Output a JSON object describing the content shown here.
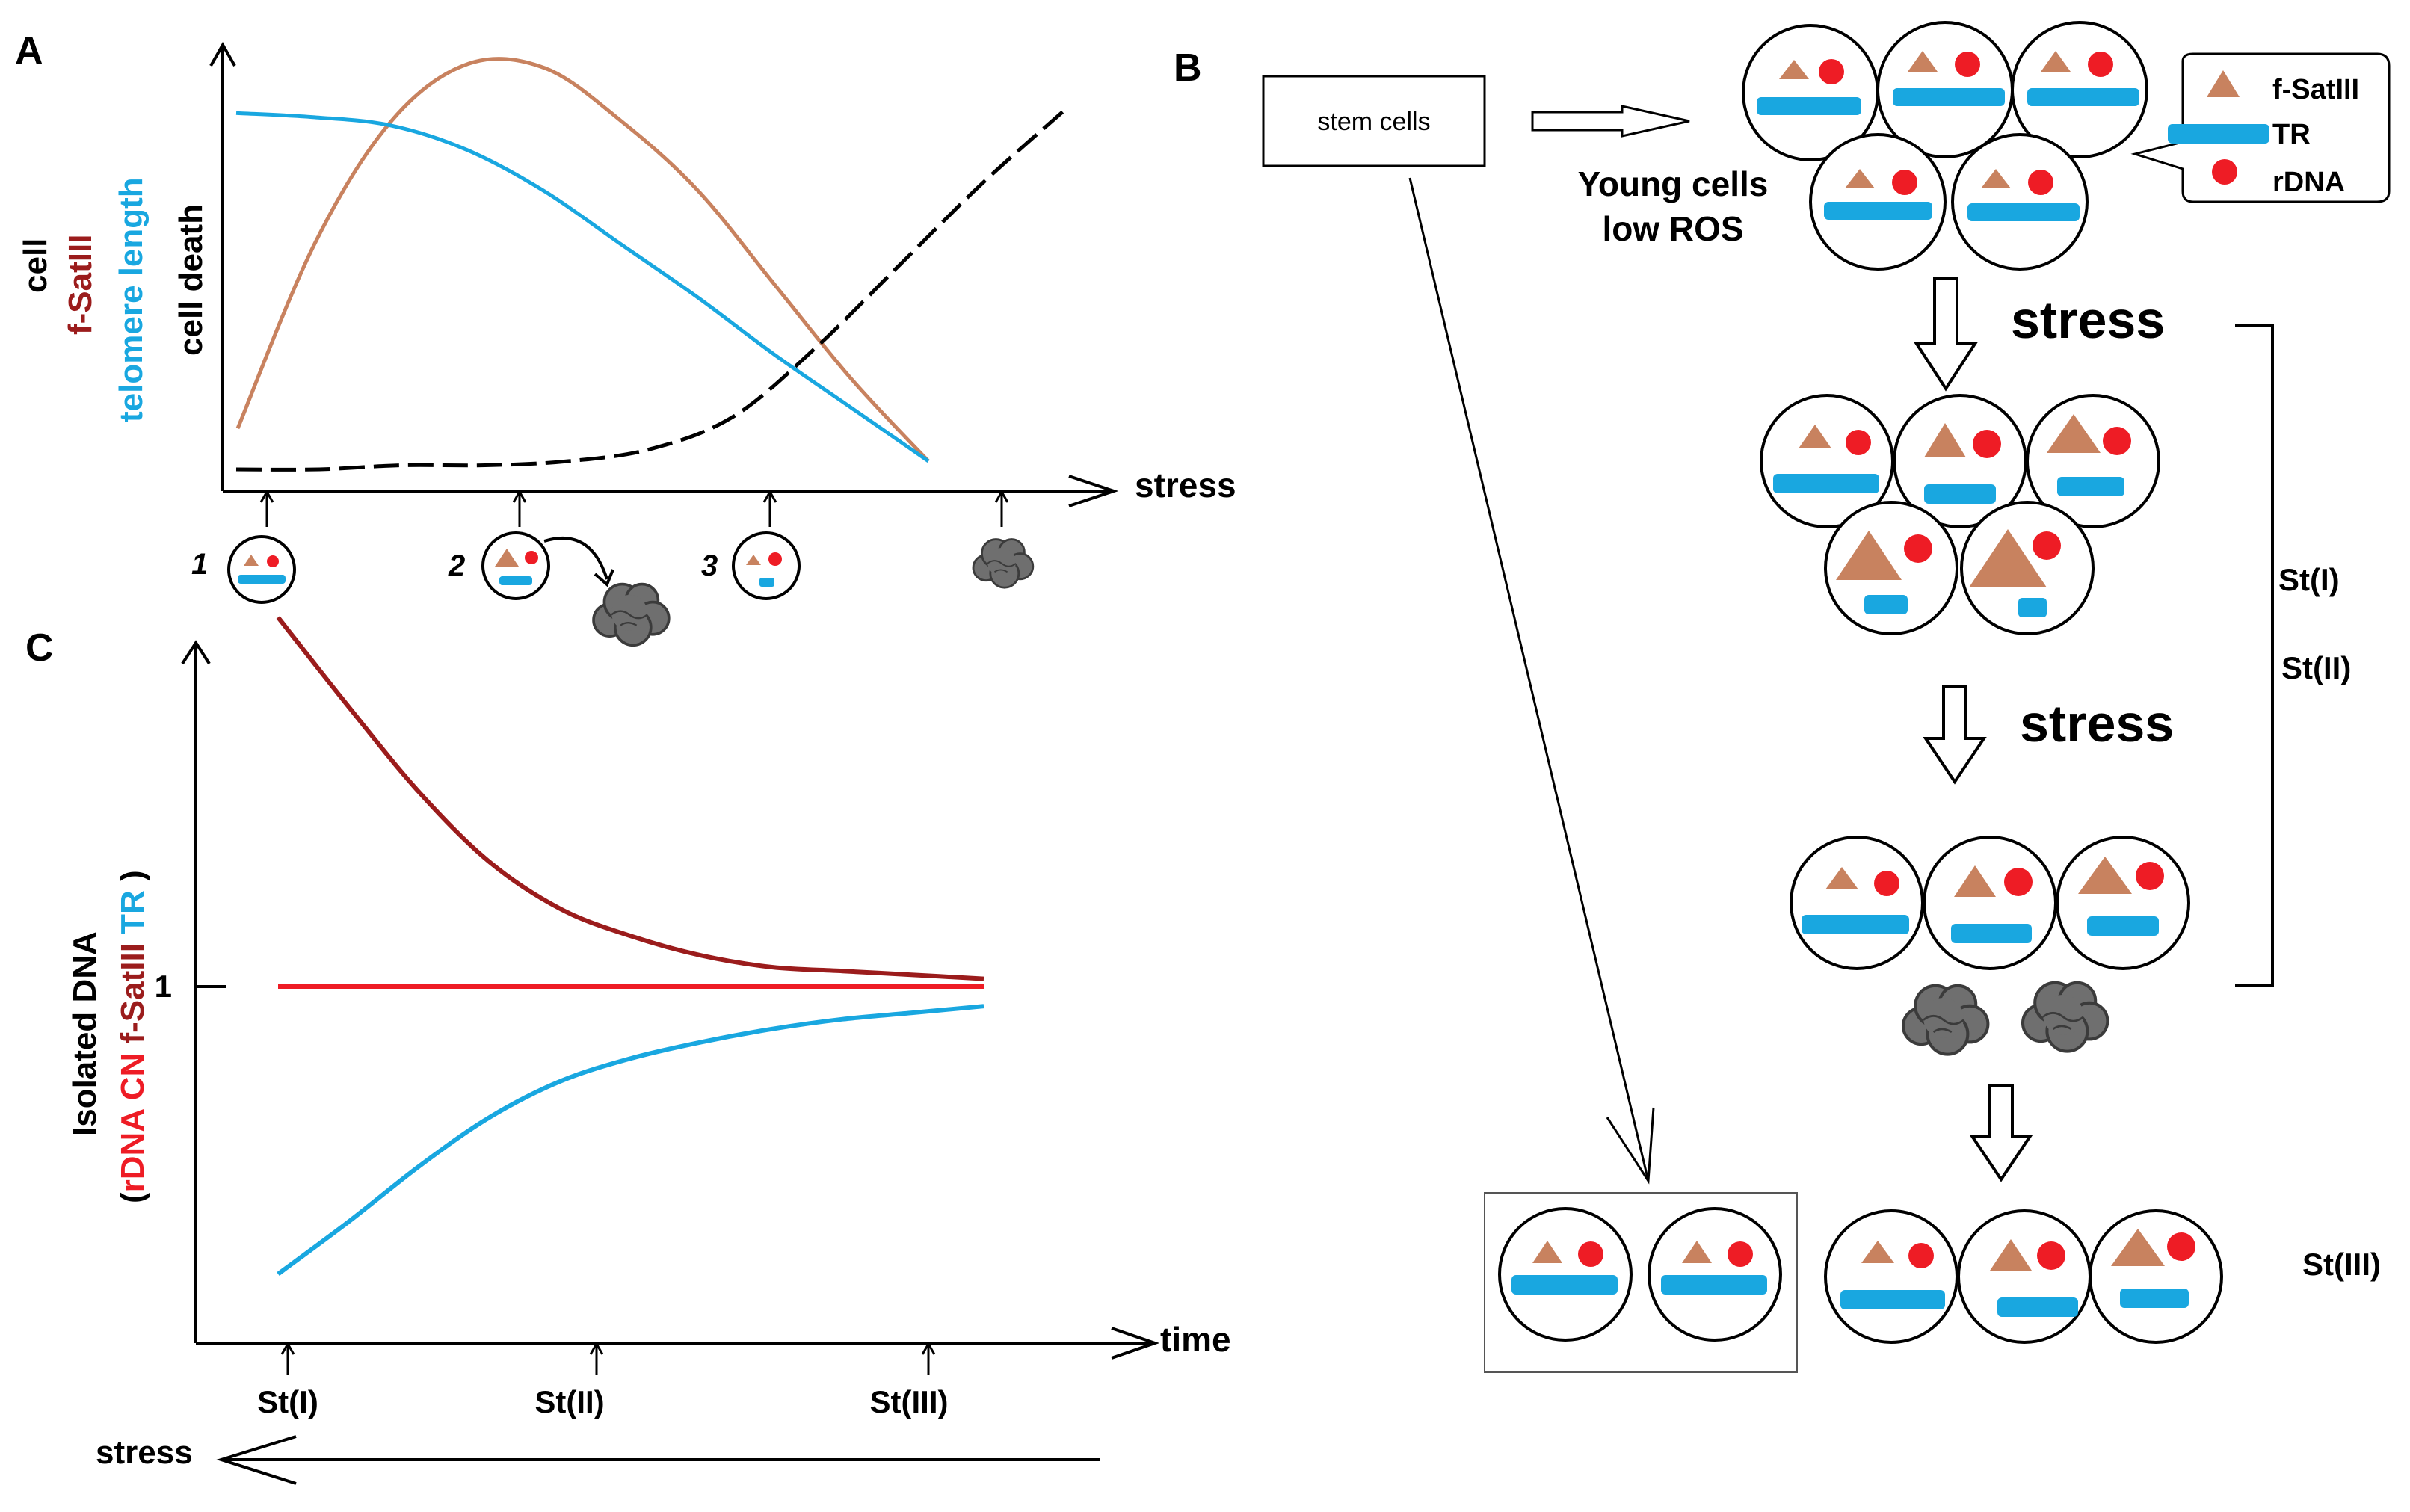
{
  "colors": {
    "satIII": "#c8825f",
    "tr": "#19a7e0",
    "rdna": "#ee1c25",
    "darkred": "#9b1c1c",
    "black": "#000000",
    "cloud": "#6f6f6f"
  },
  "panelA": {
    "letter": "A",
    "ylabel_cell": "cell",
    "ylabel_fsat": "f-SatIII",
    "ylabel_telomere": "telomere length",
    "ylabel_death": "cell death",
    "xlabel": "stress",
    "markers": [
      "1",
      "2",
      "3"
    ]
  },
  "panelB": {
    "letter": "B",
    "stem_cells": "stem cells",
    "young_cells": "Young cells",
    "low_ros": "low ROS",
    "stress_1": "stress",
    "stress_2": "stress",
    "legend": {
      "fsat": "f-SatIII",
      "tr": "TR",
      "rdna": "rDNA"
    },
    "stage_1": "St(I)",
    "stage_2": "St(II)",
    "stage_3": "St(III)"
  },
  "panelC": {
    "letter": "C",
    "ylabel_line1": "Isolated DNA",
    "ylabel_paren_open": "(",
    "ylabel_rdna": "rDNA CN",
    "ylabel_fsat": "f-SatIII",
    "ylabel_tr": "TR",
    "ylabel_paren_close": ")",
    "y_tick": "1",
    "xlabel": "time",
    "stages": [
      "St(I)",
      "St(II)",
      "St(III)"
    ],
    "stress_arrow": "stress"
  },
  "chart_data": [
    {
      "type": "line",
      "title": "",
      "panel": "A",
      "xlabel": "stress",
      "ylabel": "cell f-SatIII telomere length cell death",
      "x": [
        0,
        1,
        2,
        3,
        4,
        5,
        6,
        7,
        8,
        9,
        10
      ],
      "series": [
        {
          "name": "f-SatIII",
          "values": [
            0.1,
            0.55,
            0.85,
            0.99,
            0.98,
            0.85,
            0.68,
            0.45,
            0.22,
            0.02,
            null
          ]
        },
        {
          "name": "telomere length",
          "values": [
            0.87,
            0.86,
            0.84,
            0.78,
            0.68,
            0.55,
            0.42,
            0.28,
            0.15,
            0.02,
            null
          ]
        },
        {
          "name": "cell death",
          "values": [
            0.0,
            0.0,
            0.01,
            0.01,
            0.02,
            0.05,
            0.13,
            0.3,
            0.5,
            0.7,
            0.88
          ]
        }
      ],
      "markers": [
        "1",
        "2",
        "3"
      ]
    },
    {
      "type": "line",
      "title": "",
      "panel": "C",
      "xlabel": "time",
      "ylabel": "Isolated DNA (rDNA CN f-SatIII TR)",
      "categories": [
        "St(I)",
        "St(II)",
        "St(III)"
      ],
      "y_reference": 1,
      "x": [
        0,
        1,
        2,
        3,
        4,
        5,
        6,
        7,
        8,
        9,
        10
      ],
      "series": [
        {
          "name": "f-SatIII",
          "values": [
            1.95,
            1.72,
            1.5,
            1.32,
            1.2,
            1.13,
            1.08,
            1.05,
            1.04,
            1.03,
            1.02
          ]
        },
        {
          "name": "rDNA CN",
          "values": [
            1,
            1,
            1,
            1,
            1,
            1,
            1,
            1,
            1,
            1,
            1
          ]
        },
        {
          "name": "TR",
          "values": [
            0.12,
            0.28,
            0.45,
            0.6,
            0.71,
            0.78,
            0.83,
            0.87,
            0.9,
            0.92,
            0.94
          ]
        }
      ]
    }
  ]
}
